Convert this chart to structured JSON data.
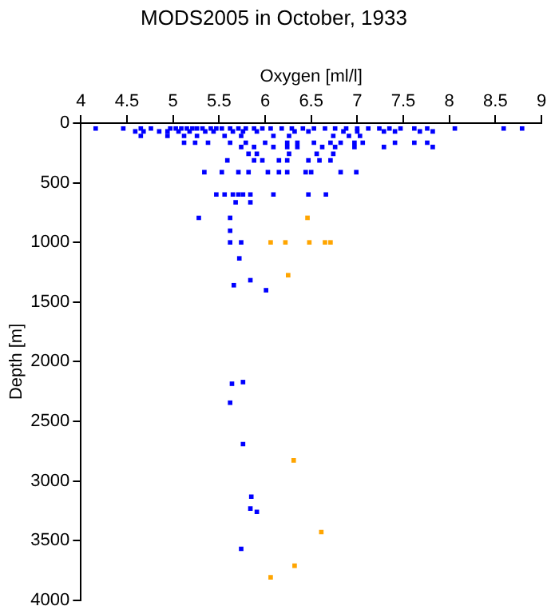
{
  "chart_data": {
    "type": "scatter",
    "title": "MODS2005 in October, 1933",
    "xlabel": "Oxygen [ml/l]",
    "ylabel": "Depth [m]",
    "xlim": [
      4,
      9
    ],
    "xticks": [
      4,
      4.5,
      5,
      5.5,
      6,
      6.5,
      7,
      7.5,
      8,
      8.5,
      9
    ],
    "ylim": [
      4000,
      0
    ],
    "yticks": [
      0,
      500,
      1000,
      1500,
      2000,
      2500,
      3000,
      3500,
      4000
    ],
    "grid": false,
    "legend": false,
    "marker": "square",
    "series": [
      {
        "color": "#0000ff",
        "x": [
          4.16,
          4.46,
          4.65,
          4.76,
          4.97,
          5.03,
          5.09,
          5.15,
          5.21,
          5.26,
          5.32,
          5.41,
          5.47,
          5.53,
          5.62,
          5.71,
          5.79,
          5.88,
          5.97,
          6.06,
          6.18,
          6.29,
          6.41,
          6.53,
          6.65,
          6.76,
          6.88,
          7.0,
          7.12,
          7.24,
          7.35,
          7.47,
          7.62,
          7.76,
          8.06,
          8.59,
          8.79,
          4.59,
          4.68,
          4.85,
          4.94,
          5.06,
          5.18,
          5.35,
          5.44,
          5.65,
          5.76,
          5.91,
          6.32,
          6.47,
          6.85,
          7.0,
          7.29,
          7.41,
          7.68,
          7.82,
          4.65,
          4.94,
          5.12,
          5.26,
          5.56,
          5.74,
          6.09,
          6.26,
          6.74,
          6.91,
          7.03,
          5.12,
          5.24,
          5.38,
          5.62,
          5.79,
          6.0,
          6.24,
          6.35,
          6.53,
          6.71,
          6.82,
          6.97,
          7.06,
          7.41,
          7.62,
          7.76,
          5.74,
          5.88,
          6.09,
          6.24,
          6.35,
          6.62,
          6.76,
          6.97,
          7.29,
          7.82,
          5.82,
          5.91,
          6.26,
          6.56,
          6.74,
          5.59,
          5.88,
          5.97,
          6.15,
          6.24,
          6.47,
          6.59,
          6.71,
          5.34,
          5.53,
          5.71,
          5.82,
          6.03,
          6.15,
          6.24,
          6.44,
          6.5,
          6.82,
          6.99,
          5.47,
          5.56,
          5.65,
          5.71,
          5.76,
          5.84,
          6.09,
          6.47,
          6.66,
          5.68,
          5.84,
          5.28,
          5.62,
          5.62,
          5.62,
          5.74,
          5.72,
          5.66,
          5.84,
          6.01,
          5.64,
          5.76,
          5.62,
          5.76,
          5.85,
          5.84,
          5.91,
          5.74
        ],
        "values": [
          45,
          45,
          45,
          45,
          45,
          45,
          45,
          45,
          45,
          45,
          45,
          45,
          45,
          45,
          45,
          45,
          45,
          45,
          45,
          45,
          45,
          45,
          45,
          45,
          45,
          45,
          45,
          45,
          45,
          45,
          45,
          45,
          45,
          45,
          45,
          45,
          45,
          70,
          70,
          70,
          70,
          70,
          70,
          70,
          70,
          70,
          70,
          70,
          70,
          70,
          70,
          70,
          70,
          70,
          70,
          70,
          107,
          107,
          107,
          107,
          107,
          107,
          107,
          107,
          107,
          107,
          107,
          164,
          164,
          164,
          164,
          164,
          164,
          164,
          164,
          164,
          164,
          164,
          164,
          164,
          164,
          164,
          164,
          200,
          200,
          200,
          200,
          200,
          200,
          200,
          200,
          200,
          200,
          257,
          257,
          257,
          257,
          257,
          313,
          313,
          313,
          313,
          313,
          313,
          313,
          313,
          411,
          411,
          411,
          411,
          411,
          411,
          411,
          411,
          411,
          411,
          411,
          598,
          598,
          598,
          598,
          598,
          598,
          598,
          598,
          598,
          664,
          664,
          794,
          794,
          902,
          1000,
          1000,
          1134,
          1359,
          1317,
          1401,
          2185,
          2171,
          2344,
          2691,
          3132,
          3231,
          3259,
          3569
        ]
      },
      {
        "color": "#ffa500",
        "x": [
          6.46,
          6.06,
          6.22,
          6.48,
          6.65,
          6.71,
          6.25,
          6.31,
          6.61,
          6.32,
          6.06
        ],
        "values": [
          794,
          1000,
          1000,
          1000,
          1000,
          1000,
          1275,
          2828,
          3428,
          3711,
          3808
        ]
      }
    ]
  }
}
